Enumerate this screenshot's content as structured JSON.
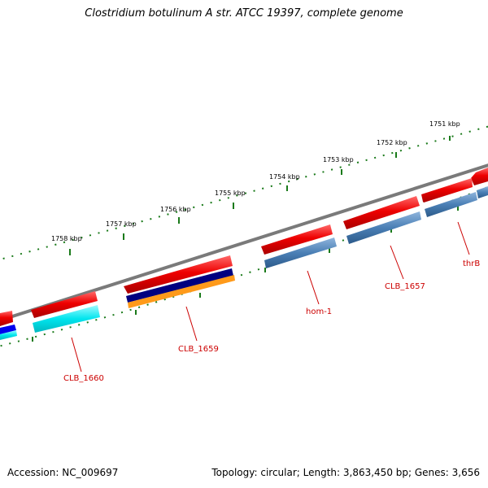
{
  "title": "Clostridium botulinum A str. ATCC 19397, complete genome",
  "footer": {
    "accession": "Accession: NC_009697",
    "summary": "Topology: circular; Length: 3,863,450 bp; Genes: 3,656"
  },
  "ticks": [
    "1751 kbp",
    "1752 kbp",
    "1753 kbp",
    "1754 kbp",
    "1755 kbp",
    "1756 kbp",
    "1757 kbp",
    "1758 kbp"
  ],
  "genes": [
    {
      "name": "thrB"
    },
    {
      "name": "CLB_1657"
    },
    {
      "name": "hom-1"
    },
    {
      "name": "CLB_1659"
    },
    {
      "name": "CLB_1660"
    }
  ],
  "colors": {
    "cds": "#ee0000",
    "backbone": "#7a7a7a",
    "tick": "#1a7a1a",
    "steelblue": "#4a7fb5",
    "cyan": "#00e5ee",
    "navy": "#000080",
    "orange": "#ff9a1a",
    "blue": "#0000ee",
    "label": "#cc0000"
  }
}
